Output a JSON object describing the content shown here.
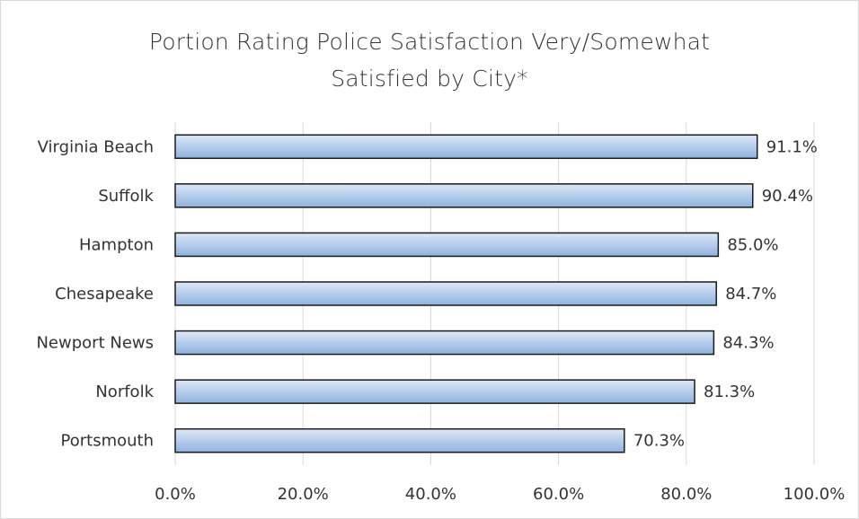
{
  "chart_data": {
    "type": "bar",
    "orientation": "horizontal",
    "title": "Portion Rating Police Satisfaction Very/Somewhat Satisfied by City*",
    "categories": [
      "Virginia Beach",
      "Suffolk",
      "Hampton",
      "Chesapeake",
      "Newport News",
      "Norfolk",
      "Portsmouth"
    ],
    "values": [
      91.1,
      90.4,
      85.0,
      84.7,
      84.3,
      81.3,
      70.3
    ],
    "value_labels": [
      "91.1%",
      "90.4%",
      "85.0%",
      "84.7%",
      "84.3%",
      "81.3%",
      "70.3%"
    ],
    "color": "#a9c4e8",
    "xlim": [
      0,
      100
    ],
    "xticks": [
      {
        "value": 0,
        "label": "0.0%"
      },
      {
        "value": 20,
        "label": "20.0%"
      },
      {
        "value": 40,
        "label": "40.0%"
      },
      {
        "value": 60,
        "label": "60.0%"
      },
      {
        "value": 80,
        "label": "80.0%"
      },
      {
        "value": 100,
        "label": "100.0%"
      }
    ],
    "grid": true
  }
}
